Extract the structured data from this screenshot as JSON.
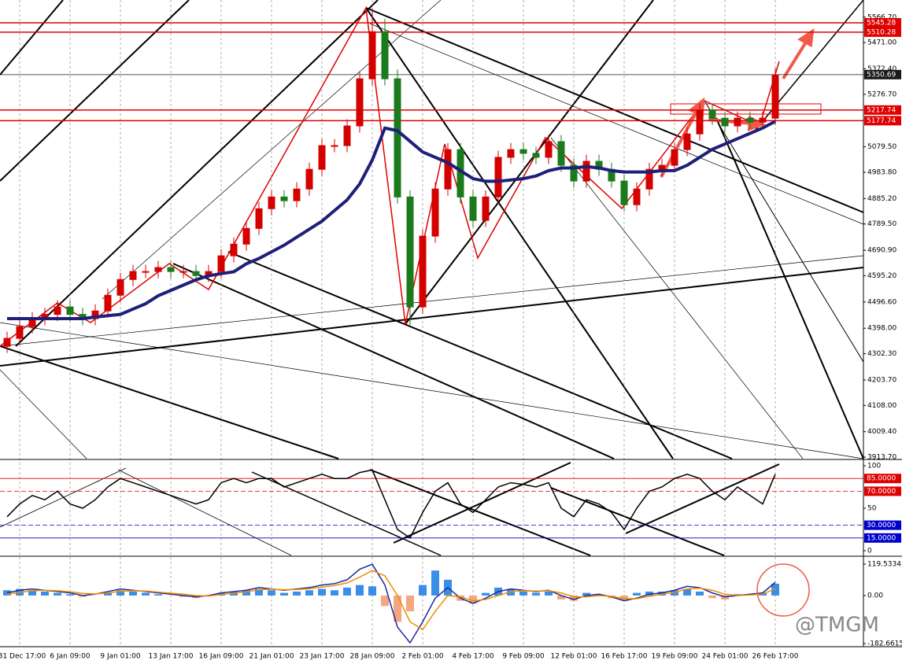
{
  "chart_data": [
    {
      "type": "candlestick",
      "categories": [
        null,
        "31 Dec 17:00",
        null,
        null,
        null,
        "6 Jan 09:00",
        null,
        null,
        null,
        "9 Jan 01:00",
        null,
        null,
        null,
        "13 Jan 17:00",
        null,
        null,
        null,
        "16 Jan 09:00",
        null,
        null,
        null,
        "21 Jan 01:00",
        null,
        null,
        null,
        "23 Jan 17:00",
        null,
        null,
        null,
        "28 Jan 09:00",
        null,
        null,
        null,
        "2 Feb 01:00",
        null,
        null,
        null,
        "4 Feb 17:00",
        null,
        null,
        null,
        "9 Feb 09:00",
        null,
        null,
        null,
        "12 Feb 01:00",
        null,
        null,
        null,
        "16 Feb 17:00",
        null,
        null,
        null,
        "19 Feb 09:00",
        null,
        null,
        null,
        "24 Feb 01:00",
        null,
        null,
        null,
        "26 Feb 17:00"
      ],
      "open": [
        4330,
        4360,
        4404,
        4434,
        4450,
        4478,
        4450,
        4434,
        4463,
        4522,
        4581,
        4611,
        4611,
        4626,
        4611,
        4611,
        4596,
        4611,
        4670,
        4714,
        4773,
        4847,
        4891,
        4877,
        4921,
        4995,
        5084,
        5084,
        5158,
        5335,
        5512,
        5335,
        4891,
        4478,
        4744,
        4921,
        5069,
        4891,
        4803,
        4891,
        5040,
        5069,
        5055,
        5040,
        5099,
        5010,
        4951,
        5025,
        4995,
        4951,
        4862,
        4921,
        4995,
        5010,
        5069,
        5128,
        5217,
        5187,
        5158,
        5187,
        5172,
        5187
      ],
      "high": [
        4385,
        4429,
        4459,
        4475,
        4503,
        4503,
        4475,
        4488,
        4547,
        4606,
        4636,
        4636,
        4651,
        4651,
        4636,
        4636,
        4636,
        4695,
        4739,
        4798,
        4872,
        4916,
        4916,
        4946,
        5020,
        5109,
        5109,
        5183,
        5360,
        5600,
        5560,
        5370,
        4916,
        4769,
        4946,
        5094,
        5094,
        4916,
        4916,
        5065,
        5094,
        5094,
        5080,
        5124,
        5124,
        5035,
        5050,
        5050,
        5020,
        4976,
        4946,
        5020,
        5035,
        5094,
        5153,
        5242,
        5242,
        5212,
        5212,
        5212,
        5212,
        5375
      ],
      "low": [
        4305,
        4335,
        4379,
        4409,
        4425,
        4425,
        4409,
        4409,
        4438,
        4497,
        4556,
        4586,
        4586,
        4586,
        4586,
        4571,
        4571,
        4586,
        4645,
        4689,
        4748,
        4822,
        4852,
        4852,
        4896,
        4970,
        5059,
        5059,
        5133,
        5310,
        5310,
        4866,
        4410,
        4453,
        4719,
        4896,
        4866,
        4778,
        4778,
        4866,
        5015,
        5030,
        5015,
        5015,
        4985,
        4926,
        4926,
        4970,
        4926,
        4837,
        4837,
        4896,
        4970,
        4985,
        5044,
        5103,
        5162,
        5133,
        5133,
        5147,
        5147,
        5162
      ],
      "close": [
        4360,
        4404,
        4434,
        4450,
        4478,
        4450,
        4434,
        4463,
        4522,
        4581,
        4611,
        4611,
        4626,
        4611,
        4611,
        4596,
        4611,
        4670,
        4714,
        4773,
        4847,
        4891,
        4877,
        4921,
        4995,
        5084,
        5084,
        5158,
        5335,
        5512,
        5335,
        4891,
        4478,
        4744,
        4921,
        5069,
        4891,
        4803,
        4891,
        5040,
        5069,
        5055,
        5040,
        5099,
        5010,
        4951,
        5025,
        4995,
        4951,
        4862,
        4921,
        4995,
        5010,
        5069,
        5128,
        5217,
        5187,
        5158,
        5187,
        5172,
        5187,
        5350
      ],
      "up_color": "#d40000",
      "down_color": "#1b7a1b",
      "series": [
        {
          "color": "#1f1f7a",
          "values": [
            4434,
            4434,
            4434,
            4434,
            4434,
            4434,
            4434,
            4440,
            4445,
            4450,
            4470,
            4490,
            4520,
            4540,
            4560,
            4580,
            4595,
            4603,
            4610,
            4640,
            4660,
            4685,
            4710,
            4740,
            4770,
            4800,
            4840,
            4880,
            4940,
            5030,
            5150,
            5140,
            5100,
            5060,
            5040,
            5020,
            4990,
            4960,
            4950,
            4950,
            4955,
            4960,
            4970,
            4990,
            5000,
            5000,
            5005,
            5000,
            4990,
            4985,
            4985,
            4985,
            4990,
            4990,
            5010,
            5040,
            5070,
            5090,
            5110,
            5130,
            5150,
            5175
          ]
        }
      ],
      "ylim": [
        3908,
        5631
      ],
      "yticks": [
        {
          "value": 3913.7,
          "label": "3913.70"
        },
        {
          "value": 4009.4,
          "label": "4009.40"
        },
        {
          "value": 4108,
          "label": "4108.00"
        },
        {
          "value": 4203.7,
          "label": "4203.70"
        },
        {
          "value": 4302.3,
          "label": "4302.30"
        },
        {
          "value": 4398,
          "label": "4398.00"
        },
        {
          "value": 4496.6,
          "label": "4496.60"
        },
        {
          "value": 4595.2,
          "label": "4595.20"
        },
        {
          "value": 4690.9,
          "label": "4690.90"
        },
        {
          "value": 4789.5,
          "label": "4789.50"
        },
        {
          "value": 4885.2,
          "label": "4885.20"
        },
        {
          "value": 4983.8,
          "label": "4983.80"
        },
        {
          "value": 5079.5,
          "label": "5079.50"
        },
        {
          "value": 5276.7,
          "label": "5276.70"
        },
        {
          "value": 5372.4,
          "label": "5372.40"
        },
        {
          "value": 5471,
          "label": "5471.00"
        },
        {
          "value": 5566.7,
          "label": "5566.70"
        }
      ],
      "hlines": [
        {
          "value": 5545.28,
          "color": "#e00000"
        },
        {
          "value": 5510.28,
          "color": "#e00000"
        },
        {
          "value": 5350.69,
          "color": "#1a1a1a"
        },
        {
          "value": 5217.74,
          "color": "#e00000"
        },
        {
          "value": 5177.74,
          "color": "#e00000"
        }
      ],
      "grid": true
    },
    {
      "type": "line",
      "series": [
        {
          "color": "#000000",
          "values": [
            40,
            55,
            65,
            60,
            70,
            55,
            50,
            60,
            75,
            85,
            80,
            75,
            70,
            65,
            60,
            55,
            60,
            80,
            85,
            80,
            85,
            85,
            75,
            80,
            85,
            90,
            85,
            85,
            92,
            95,
            60,
            25,
            15,
            45,
            70,
            80,
            55,
            45,
            60,
            75,
            80,
            78,
            75,
            80,
            50,
            40,
            60,
            55,
            45,
            25,
            50,
            70,
            75,
            85,
            90,
            85,
            70,
            60,
            75,
            65,
            55,
            90
          ]
        }
      ],
      "ylim": [
        0,
        100
      ],
      "yticks": [
        0,
        50,
        100
      ],
      "hlines": [
        {
          "value": 85,
          "label": "85.0000",
          "color": "#e00000"
        },
        {
          "value": 70,
          "label": "70.0000",
          "color": "#e00000"
        },
        {
          "value": 30,
          "label": "30.0000",
          "color": "#0000cc"
        },
        {
          "value": 15,
          "label": "15.0000",
          "color": "#0000cc"
        }
      ]
    },
    {
      "type": "macd",
      "values": [
        20,
        25,
        20,
        15,
        10,
        5,
        -5,
        0,
        10,
        20,
        15,
        10,
        5,
        0,
        -5,
        -10,
        0,
        10,
        15,
        20,
        25,
        20,
        10,
        15,
        20,
        25,
        20,
        30,
        40,
        35,
        -40,
        -100,
        -60,
        40,
        95,
        60,
        -20,
        -30,
        10,
        30,
        25,
        15,
        10,
        15,
        -15,
        -20,
        10,
        5,
        -10,
        -20,
        10,
        15,
        15,
        20,
        25,
        15,
        -10,
        -15,
        5,
        5,
        10,
        45
      ],
      "pos_color": "#3a8ee6",
      "neg_color": "#f4a582",
      "series": [
        {
          "color": "#1a2a9a",
          "values": [
            10,
            20,
            25,
            20,
            15,
            10,
            0,
            5,
            15,
            25,
            20,
            15,
            10,
            5,
            0,
            -5,
            0,
            10,
            15,
            20,
            30,
            25,
            20,
            25,
            30,
            40,
            45,
            60,
            100,
            119,
            40,
            -120,
            -180,
            -100,
            -10,
            30,
            -10,
            -30,
            -10,
            15,
            25,
            20,
            15,
            20,
            0,
            -15,
            0,
            5,
            -5,
            -20,
            -10,
            5,
            10,
            20,
            35,
            30,
            10,
            -5,
            0,
            5,
            10,
            50
          ]
        },
        {
          "color": "#f08c00",
          "values": [
            5,
            12,
            18,
            20,
            18,
            14,
            8,
            6,
            10,
            16,
            18,
            17,
            13,
            9,
            5,
            0,
            -2,
            4,
            9,
            14,
            22,
            24,
            22,
            23,
            26,
            32,
            38,
            48,
            70,
            95,
            75,
            0,
            -100,
            -130,
            -60,
            0,
            -5,
            -20,
            -15,
            0,
            15,
            18,
            17,
            18,
            10,
            -5,
            -5,
            0,
            -3,
            -12,
            -12,
            -3,
            5,
            12,
            25,
            28,
            20,
            5,
            0,
            2,
            6,
            25
          ]
        }
      ],
      "ylim": [
        -182.6615,
        119.5334
      ],
      "yticks": [
        -182.6615,
        {
          "value": 0,
          "label": "0.00"
        },
        119.5334
      ]
    }
  ],
  "watermark": "@TMGM"
}
